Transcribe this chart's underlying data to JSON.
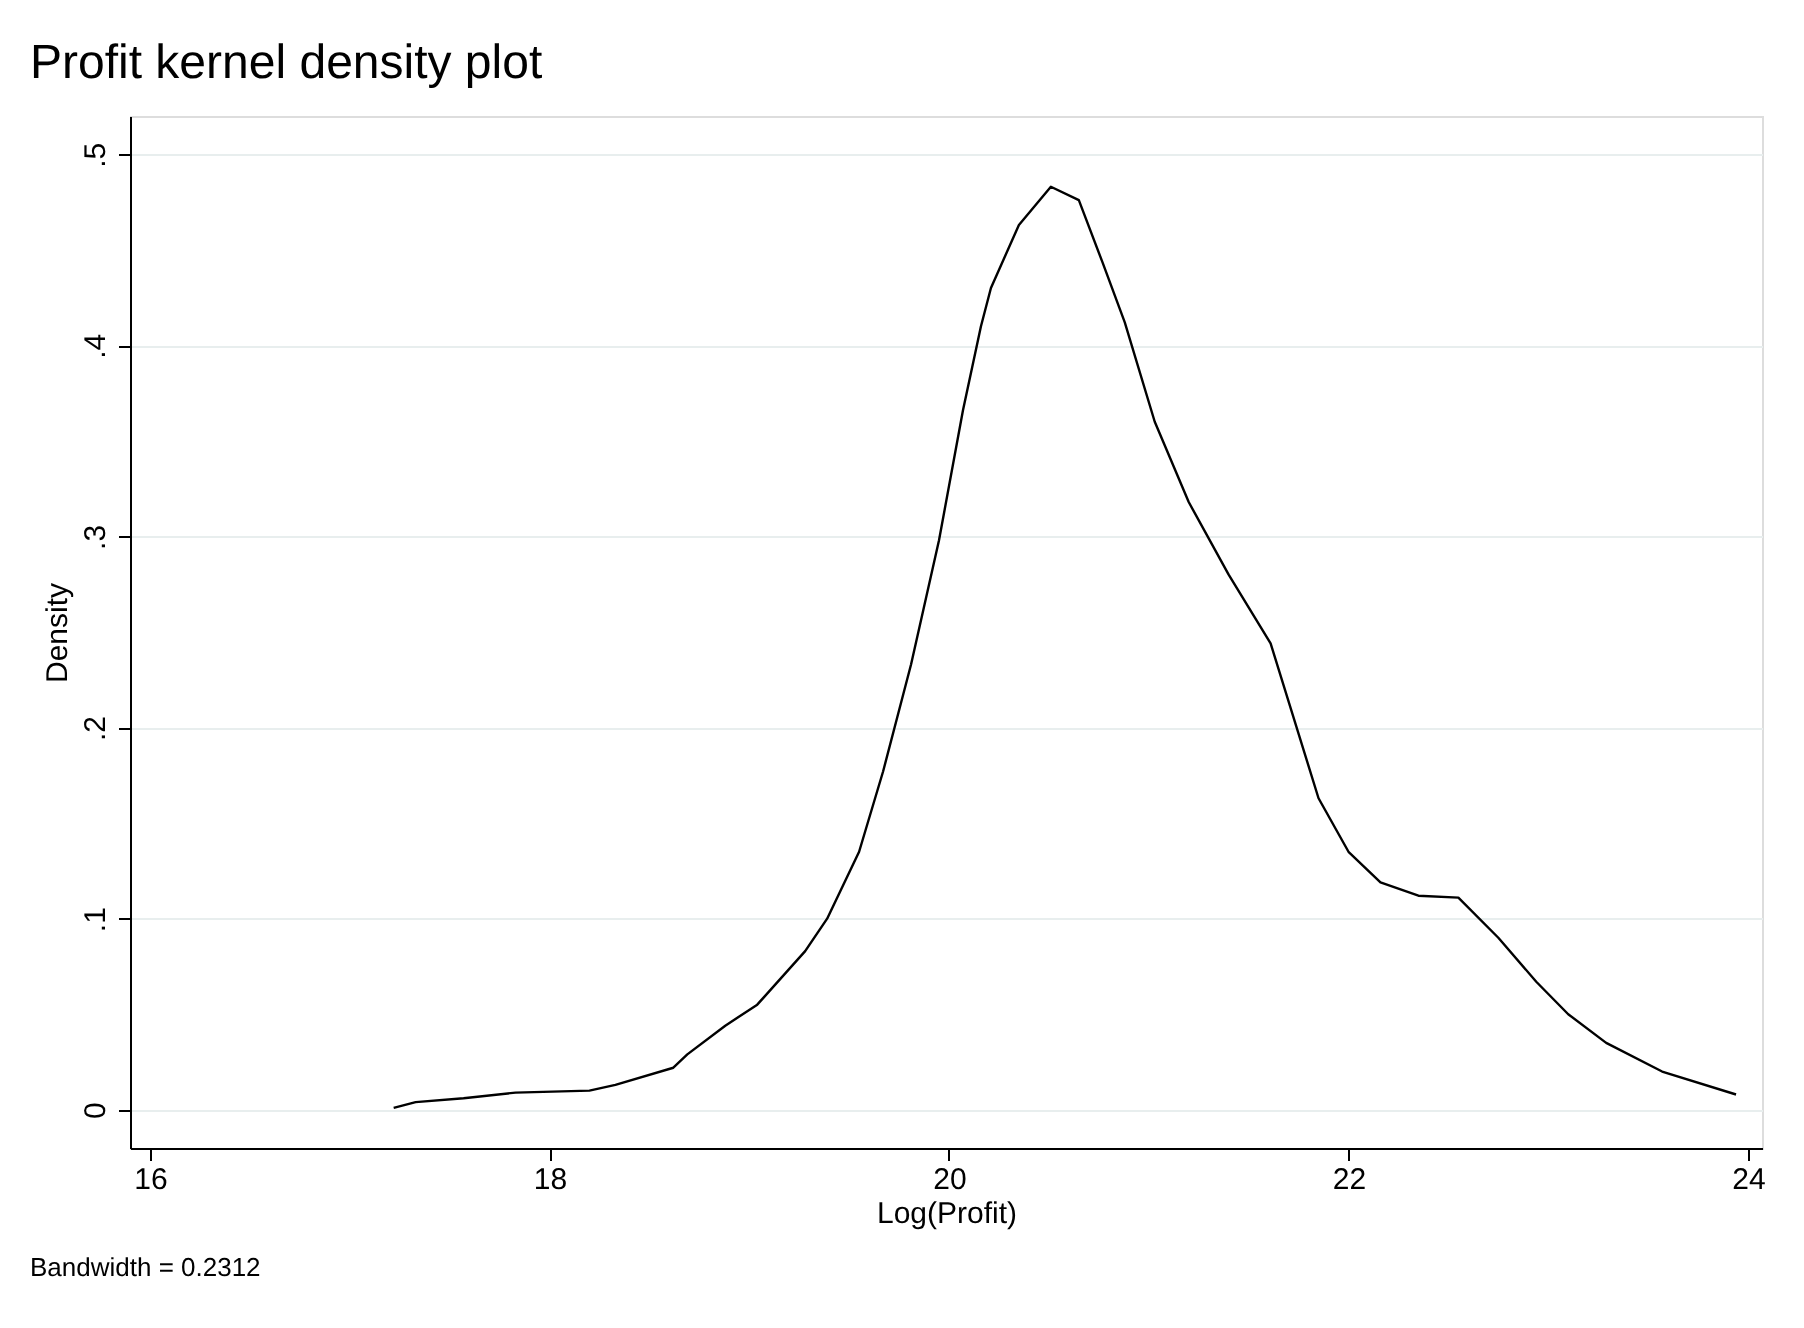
{
  "chart_data": {
    "type": "line",
    "title": "Profit kernel density plot",
    "xlabel": "Log(Profit)",
    "ylabel": "Density",
    "annotations": [
      "Bandwidth = 0.2312"
    ],
    "x": [
      17.22,
      17.33,
      17.57,
      17.83,
      18.2,
      18.33,
      18.62,
      18.69,
      18.88,
      19.04,
      19.28,
      19.39,
      19.55,
      19.67,
      19.81,
      19.95,
      20.07,
      20.16,
      20.21,
      20.35,
      20.51,
      20.65,
      20.77,
      20.88,
      21.03,
      21.2,
      21.4,
      21.61,
      21.85,
      22.0,
      22.16,
      22.35,
      22.55,
      22.75,
      22.94,
      23.1,
      23.29,
      23.57,
      23.94
    ],
    "series": [
      {
        "color": "#000000",
        "values": [
          0.001,
          0.004,
          0.006,
          0.009,
          0.01,
          0.013,
          0.022,
          0.029,
          0.044,
          0.055,
          0.083,
          0.1,
          0.135,
          0.177,
          0.233,
          0.298,
          0.366,
          0.41,
          0.43,
          0.463,
          0.483,
          0.476,
          0.443,
          0.412,
          0.36,
          0.318,
          0.28,
          0.244,
          0.163,
          0.135,
          0.119,
          0.112,
          0.111,
          0.09,
          0.067,
          0.05,
          0.035,
          0.02,
          0.008
        ]
      }
    ],
    "xlim": [
      15.9,
      24.07
    ],
    "xticks": [
      16,
      18,
      20,
      22,
      24
    ],
    "ylim": [
      -0.02,
      0.52
    ],
    "yticks": [
      {
        "value": 0,
        "label": "0"
      },
      {
        "value": 0.1,
        "label": ".1"
      },
      {
        "value": 0.2,
        "label": ".2"
      },
      {
        "value": 0.3,
        "label": ".3"
      },
      {
        "value": 0.4,
        "label": ".4"
      },
      {
        "value": 0.5,
        "label": ".5"
      }
    ],
    "grid": "y",
    "legend": false,
    "line_style": "solid",
    "marker": "none"
  }
}
